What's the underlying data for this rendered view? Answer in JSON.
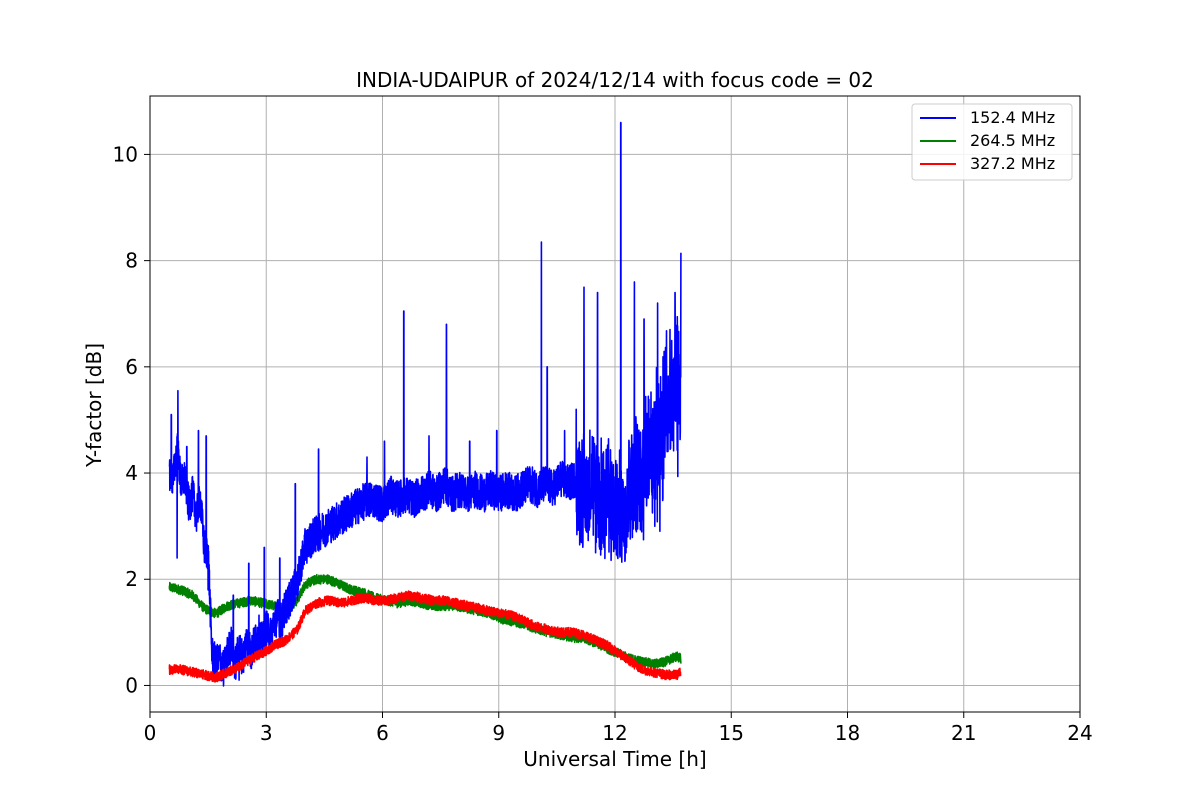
{
  "chart_data": {
    "type": "line",
    "title": "INDIA-UDAIPUR of 2024/12/14 with focus code = 02",
    "xlabel": "Universal Time [h]",
    "ylabel": "Y-factor [dB]",
    "xlim": [
      0,
      24
    ],
    "ylim": [
      -0.5,
      11.1
    ],
    "xticks": [
      0,
      3,
      6,
      9,
      12,
      15,
      18,
      21,
      24
    ],
    "yticks": [
      0,
      2,
      4,
      6,
      8,
      10
    ],
    "grid": true,
    "legend_position": "top-right",
    "series": [
      {
        "name": "152.4 MHz",
        "color": "#0000ff",
        "points": [
          [
            0.5,
            4.0
          ],
          [
            0.6,
            3.9
          ],
          [
            0.7,
            4.5
          ],
          [
            0.8,
            3.8
          ],
          [
            0.9,
            3.9
          ],
          [
            1.0,
            3.4
          ],
          [
            1.1,
            3.6
          ],
          [
            1.2,
            3.2
          ],
          [
            1.3,
            3.5
          ],
          [
            1.4,
            2.6
          ],
          [
            1.5,
            2.5
          ],
          [
            1.6,
            0.6
          ],
          [
            1.7,
            0.4
          ],
          [
            1.8,
            0.5
          ],
          [
            1.9,
            0.3
          ],
          [
            2.0,
            0.6
          ],
          [
            2.1,
            0.8
          ],
          [
            2.2,
            0.4
          ],
          [
            2.3,
            0.7
          ],
          [
            2.4,
            0.5
          ],
          [
            2.5,
            0.9
          ],
          [
            2.6,
            0.6
          ],
          [
            2.7,
            0.8
          ],
          [
            2.8,
            1.0
          ],
          [
            2.9,
            0.8
          ],
          [
            3.0,
            1.1
          ],
          [
            3.1,
            0.9
          ],
          [
            3.2,
            1.2
          ],
          [
            3.3,
            1.3
          ],
          [
            3.4,
            1.2
          ],
          [
            3.5,
            1.5
          ],
          [
            3.6,
            1.6
          ],
          [
            3.7,
            1.8
          ],
          [
            3.8,
            1.9
          ],
          [
            3.9,
            2.3
          ],
          [
            4.0,
            2.6
          ],
          [
            4.2,
            2.8
          ],
          [
            4.4,
            2.9
          ],
          [
            4.6,
            3.0
          ],
          [
            4.8,
            3.1
          ],
          [
            5.0,
            3.2
          ],
          [
            5.2,
            3.3
          ],
          [
            5.4,
            3.4
          ],
          [
            5.6,
            3.5
          ],
          [
            5.8,
            3.5
          ],
          [
            6.0,
            3.4
          ],
          [
            6.2,
            3.6
          ],
          [
            6.4,
            3.5
          ],
          [
            6.6,
            3.6
          ],
          [
            6.8,
            3.5
          ],
          [
            7.0,
            3.6
          ],
          [
            7.2,
            3.7
          ],
          [
            7.4,
            3.6
          ],
          [
            7.6,
            3.8
          ],
          [
            7.8,
            3.6
          ],
          [
            8.0,
            3.7
          ],
          [
            8.2,
            3.6
          ],
          [
            8.4,
            3.7
          ],
          [
            8.6,
            3.6
          ],
          [
            8.8,
            3.7
          ],
          [
            9.0,
            3.6
          ],
          [
            9.2,
            3.7
          ],
          [
            9.4,
            3.6
          ],
          [
            9.6,
            3.7
          ],
          [
            9.8,
            3.8
          ],
          [
            10.0,
            3.7
          ],
          [
            10.2,
            3.8
          ],
          [
            10.4,
            3.7
          ],
          [
            10.6,
            3.9
          ],
          [
            10.8,
            3.8
          ],
          [
            11.0,
            3.9
          ],
          [
            11.2,
            3.6
          ],
          [
            11.4,
            3.8
          ],
          [
            11.6,
            3.4
          ],
          [
            11.8,
            3.7
          ],
          [
            12.0,
            3.1
          ],
          [
            12.2,
            3.3
          ],
          [
            12.4,
            3.8
          ],
          [
            12.6,
            4.0
          ],
          [
            12.8,
            4.4
          ],
          [
            13.0,
            4.2
          ],
          [
            13.2,
            4.8
          ],
          [
            13.4,
            5.3
          ],
          [
            13.6,
            5.5
          ],
          [
            13.7,
            5.6
          ]
        ],
        "spikes": [
          [
            0.55,
            5.1
          ],
          [
            0.72,
            5.55
          ],
          [
            0.95,
            4.5
          ],
          [
            1.25,
            4.8
          ],
          [
            1.45,
            4.7
          ],
          [
            2.15,
            1.7
          ],
          [
            2.55,
            2.3
          ],
          [
            2.95,
            2.6
          ],
          [
            3.35,
            2.4
          ],
          [
            3.75,
            3.8
          ],
          [
            4.35,
            4.45
          ],
          [
            5.6,
            4.3
          ],
          [
            6.05,
            4.6
          ],
          [
            6.55,
            7.05
          ],
          [
            7.2,
            4.7
          ],
          [
            7.65,
            6.8
          ],
          [
            8.25,
            4.6
          ],
          [
            8.95,
            4.8
          ],
          [
            10.1,
            8.35
          ],
          [
            10.25,
            6.0
          ],
          [
            10.7,
            4.8
          ],
          [
            11.0,
            5.2
          ],
          [
            11.2,
            7.5
          ],
          [
            11.55,
            7.4
          ],
          [
            12.15,
            10.6
          ],
          [
            12.5,
            7.6
          ],
          [
            12.75,
            6.9
          ],
          [
            13.1,
            7.2
          ],
          [
            13.55,
            7.4
          ],
          [
            13.7,
            8.15
          ]
        ],
        "dips": [
          [
            0.7,
            2.4
          ],
          [
            1.5,
            1.8
          ],
          [
            1.9,
            0.05
          ],
          [
            2.3,
            0.1
          ],
          [
            11.5,
            2.5
          ],
          [
            12.3,
            2.6
          ]
        ]
      },
      {
        "name": "264.5 MHz",
        "color": "#008000",
        "points": [
          [
            0.5,
            1.85
          ],
          [
            0.8,
            1.8
          ],
          [
            1.1,
            1.7
          ],
          [
            1.4,
            1.45
          ],
          [
            1.7,
            1.35
          ],
          [
            2.0,
            1.5
          ],
          [
            2.3,
            1.55
          ],
          [
            2.6,
            1.6
          ],
          [
            2.9,
            1.55
          ],
          [
            3.2,
            1.5
          ],
          [
            3.5,
            1.4
          ],
          [
            3.8,
            1.6
          ],
          [
            4.0,
            1.9
          ],
          [
            4.3,
            2.0
          ],
          [
            4.6,
            2.0
          ],
          [
            4.9,
            1.9
          ],
          [
            5.2,
            1.8
          ],
          [
            5.5,
            1.75
          ],
          [
            5.8,
            1.65
          ],
          [
            6.1,
            1.6
          ],
          [
            6.4,
            1.55
          ],
          [
            6.7,
            1.6
          ],
          [
            7.0,
            1.55
          ],
          [
            7.3,
            1.5
          ],
          [
            7.6,
            1.5
          ],
          [
            7.9,
            1.5
          ],
          [
            8.2,
            1.45
          ],
          [
            8.5,
            1.4
          ],
          [
            8.8,
            1.35
          ],
          [
            9.1,
            1.25
          ],
          [
            9.4,
            1.2
          ],
          [
            9.7,
            1.15
          ],
          [
            10.0,
            1.05
          ],
          [
            10.3,
            1.0
          ],
          [
            10.6,
            0.95
          ],
          [
            10.9,
            0.9
          ],
          [
            11.2,
            0.9
          ],
          [
            11.5,
            0.8
          ],
          [
            11.8,
            0.7
          ],
          [
            12.1,
            0.6
          ],
          [
            12.4,
            0.5
          ],
          [
            12.7,
            0.45
          ],
          [
            13.0,
            0.4
          ],
          [
            13.3,
            0.45
          ],
          [
            13.6,
            0.55
          ],
          [
            13.7,
            0.5
          ]
        ]
      },
      {
        "name": "327.2 MHz",
        "color": "#ff0000",
        "points": [
          [
            0.5,
            0.3
          ],
          [
            0.8,
            0.3
          ],
          [
            1.1,
            0.25
          ],
          [
            1.4,
            0.2
          ],
          [
            1.7,
            0.15
          ],
          [
            2.0,
            0.25
          ],
          [
            2.3,
            0.35
          ],
          [
            2.6,
            0.5
          ],
          [
            2.9,
            0.6
          ],
          [
            3.2,
            0.75
          ],
          [
            3.5,
            0.85
          ],
          [
            3.8,
            1.05
          ],
          [
            4.0,
            1.4
          ],
          [
            4.3,
            1.55
          ],
          [
            4.6,
            1.6
          ],
          [
            4.9,
            1.55
          ],
          [
            5.2,
            1.6
          ],
          [
            5.5,
            1.65
          ],
          [
            5.8,
            1.6
          ],
          [
            6.1,
            1.6
          ],
          [
            6.4,
            1.65
          ],
          [
            6.7,
            1.7
          ],
          [
            7.0,
            1.65
          ],
          [
            7.3,
            1.6
          ],
          [
            7.6,
            1.6
          ],
          [
            7.9,
            1.55
          ],
          [
            8.2,
            1.5
          ],
          [
            8.5,
            1.45
          ],
          [
            8.8,
            1.4
          ],
          [
            9.1,
            1.35
          ],
          [
            9.4,
            1.3
          ],
          [
            9.7,
            1.2
          ],
          [
            10.0,
            1.1
          ],
          [
            10.3,
            1.05
          ],
          [
            10.6,
            1.0
          ],
          [
            10.9,
            1.0
          ],
          [
            11.2,
            0.95
          ],
          [
            11.5,
            0.85
          ],
          [
            11.8,
            0.75
          ],
          [
            12.1,
            0.6
          ],
          [
            12.4,
            0.45
          ],
          [
            12.7,
            0.3
          ],
          [
            13.0,
            0.25
          ],
          [
            13.3,
            0.2
          ],
          [
            13.6,
            0.2
          ],
          [
            13.7,
            0.25
          ]
        ]
      }
    ]
  }
}
